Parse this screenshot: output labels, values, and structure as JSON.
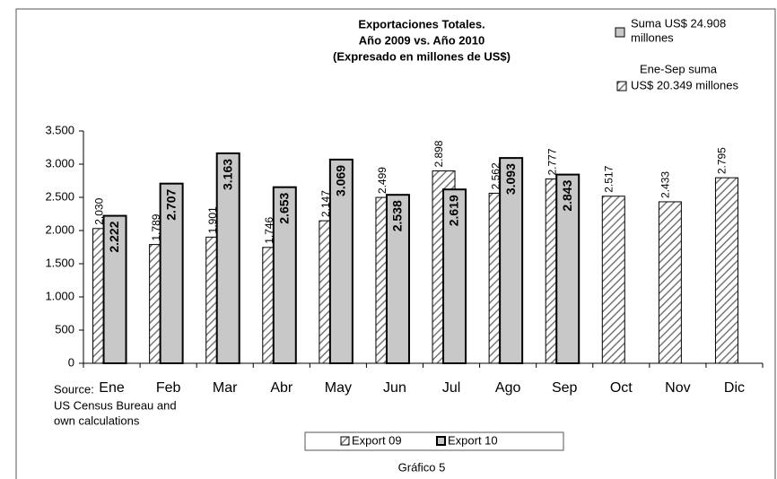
{
  "chart_data": {
    "type": "bar",
    "title": [
      "Exportaciones Totales.",
      "Año 2009 vs. Año 2010",
      "(Expresado en millones de US$)"
    ],
    "categories": [
      "Ene",
      "Feb",
      "Mar",
      "Abr",
      "May",
      "Jun",
      "Jul",
      "Ago",
      "Sep",
      "Oct",
      "Nov",
      "Dic"
    ],
    "series": [
      {
        "name": "Export 09",
        "color": "#bbbbbb",
        "pattern": "hatch",
        "values": [
          2030,
          1789,
          1901,
          1746,
          2147,
          2499,
          2898,
          2562,
          2777,
          2517,
          2433,
          2795
        ],
        "value_labels": [
          "2.030",
          "1.789",
          "1.901",
          "1.746",
          "2.147",
          "2.499",
          "2.898",
          "2.562",
          "2.777",
          "2.517",
          "2.433",
          "2.795"
        ]
      },
      {
        "name": "Export 10",
        "color": "#c8c8c8",
        "values": [
          2222,
          2707,
          3163,
          2653,
          3069,
          2538,
          2619,
          3093,
          2843,
          null,
          null,
          null
        ],
        "value_labels": [
          "2.222",
          "2.707",
          "3.163",
          "2.653",
          "3.069",
          "2.538",
          "2.619",
          "3.093",
          "2.843",
          null,
          null,
          null
        ]
      }
    ],
    "ylim": [
      0,
      3500
    ],
    "yticks": [
      0,
      500,
      {
        "value": 1000,
        "label": "1.000"
      },
      {
        "value": 1500,
        "label": "1.500"
      },
      {
        "value": 2000,
        "label": "2.000"
      },
      {
        "value": 2500,
        "label": "2.500"
      },
      {
        "value": 3000,
        "label": "3.000"
      },
      {
        "value": 3500,
        "label": "3.500"
      }
    ],
    "annotations": [
      "Suma US$ 24.908",
      "millones",
      "Ene-Sep suma",
      "US$ 20.349 millones"
    ],
    "source": [
      "Source:",
      "US Census Bureau and",
      "own calculations"
    ],
    "caption": "Gráfico 5"
  }
}
